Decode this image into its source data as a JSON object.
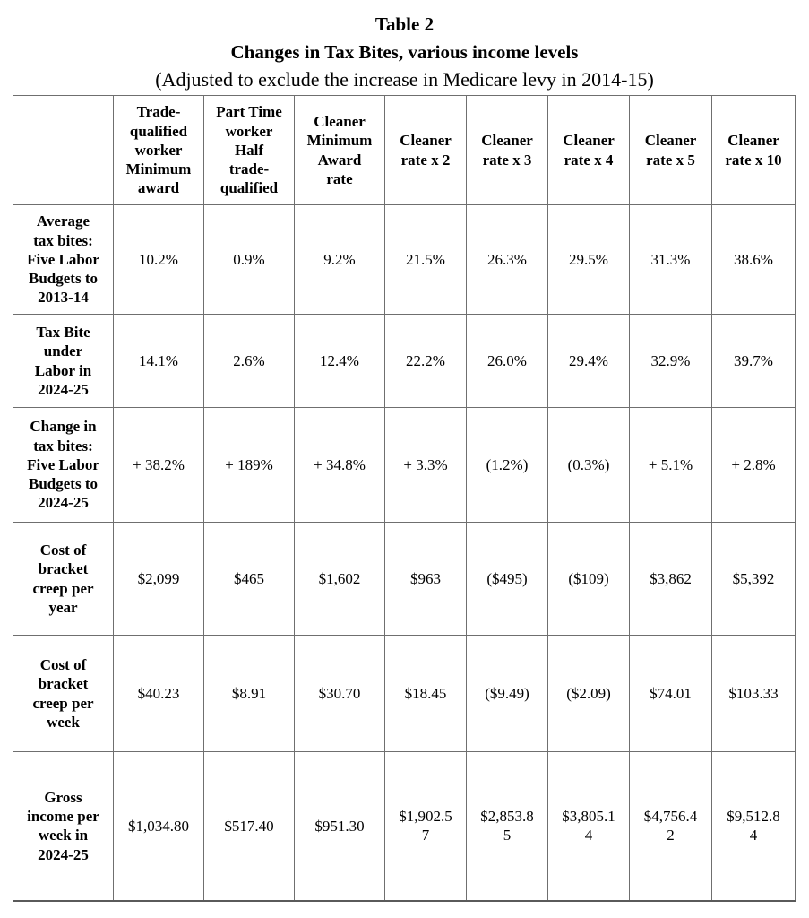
{
  "title": {
    "line1": "Table 2",
    "line2": "Changes in Tax Bites, various income levels",
    "line3": "(Adjusted to exclude the increase in Medicare levy in 2014-15)"
  },
  "table": {
    "columns": [
      "",
      "Trade-qualified worker Minimum award",
      "Part Time worker Half trade-qualified",
      "Cleaner Minimum Award rate",
      "Cleaner rate x 2",
      "Cleaner rate x 3",
      "Cleaner rate x 4",
      "Cleaner rate x 5",
      "Cleaner rate x 10"
    ],
    "rows": [
      {
        "label": "Average tax bites: Five Labor Budgets to 2013-14",
        "values": [
          "10.2%",
          "0.9%",
          "9.2%",
          "21.5%",
          "26.3%",
          "29.5%",
          "31.3%",
          "38.6%"
        ]
      },
      {
        "label": "Tax Bite under Labor in 2024-25",
        "values": [
          "14.1%",
          "2.6%",
          "12.4%",
          "22.2%",
          "26.0%",
          "29.4%",
          "32.9%",
          "39.7%"
        ]
      },
      {
        "label": "Change in tax bites: Five Labor Budgets to 2024-25",
        "values": [
          "+ 38.2%",
          "+ 189%",
          "+ 34.8%",
          "+ 3.3%",
          "(1.2%)",
          "(0.3%)",
          "+ 5.1%",
          "+ 2.8%"
        ]
      },
      {
        "label": "Cost of bracket creep per year",
        "values": [
          "$2,099",
          "$465",
          "$1,602",
          "$963",
          "($495)",
          "($109)",
          "$3,862",
          "$5,392"
        ]
      },
      {
        "label": "Cost of bracket creep per week",
        "values": [
          "$40.23",
          "$8.91",
          "$30.70",
          "$18.45",
          "($9.49)",
          "($2.09)",
          "$74.01",
          "$103.33"
        ]
      },
      {
        "label": "Gross income per week in 2024-25",
        "values": [
          "$1,034.80",
          "$517.40",
          "$951.30",
          "$1,902.57",
          "$2,853.85",
          "$3,805.14",
          "$4,756.42",
          "$9,512.84"
        ]
      }
    ]
  }
}
